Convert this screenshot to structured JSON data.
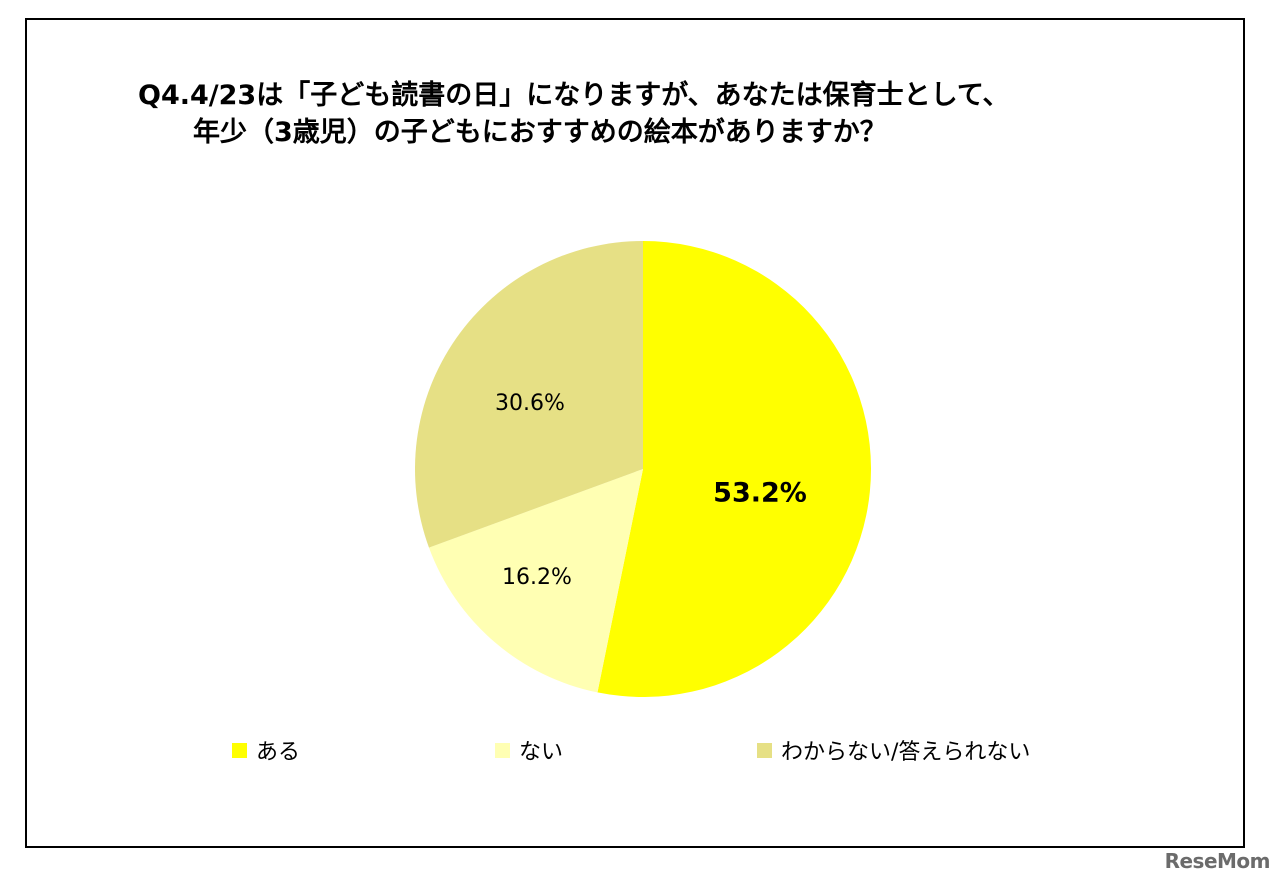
{
  "title": {
    "line1": "Q4.4/23は「子ども読書の日」になりますが、あなたは保育士として、",
    "line2": "年少（3歳児）の子どもにおすすめの絵本がありますか？"
  },
  "chart_data": {
    "type": "pie",
    "slices": [
      {
        "label": "ある",
        "value": 53.2,
        "display": "53.2%",
        "color": "#ffff00",
        "label_bold": true
      },
      {
        "label": "ない",
        "value": 16.2,
        "display": "16.2%",
        "color": "#ffffb3",
        "label_bold": false
      },
      {
        "label": "わからない/答えられない",
        "value": 30.6,
        "display": "30.6%",
        "color": "#e6e085",
        "label_bold": false
      }
    ],
    "start": "12 o'clock",
    "direction": "clockwise",
    "legend_position": "bottom"
  },
  "legend": {
    "items": [
      {
        "label": "ある",
        "color": "#ffff00"
      },
      {
        "label": "ない",
        "color": "#ffffb3"
      },
      {
        "label": "わからない/答えられない",
        "color": "#e6e085"
      }
    ]
  },
  "watermark": "ReseMom"
}
